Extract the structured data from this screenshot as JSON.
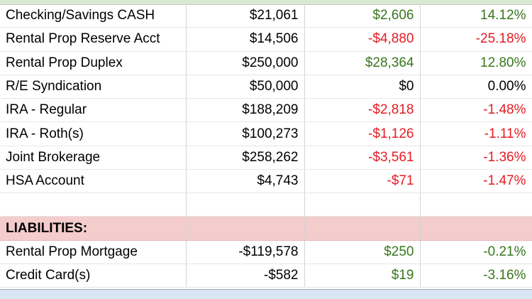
{
  "assets": [
    {
      "name": "Checking/Savings CASH",
      "value": "$21,061",
      "change": "$2,606",
      "change_class": "pos",
      "pct": "14.12%",
      "pct_class": "pos"
    },
    {
      "name": "Rental Prop Reserve Acct",
      "value": "$14,506",
      "change": "-$4,880",
      "change_class": "neg",
      "pct": "-25.18%",
      "pct_class": "neg"
    },
    {
      "name": "Rental Prop Duplex",
      "value": "$250,000",
      "change": "$28,364",
      "change_class": "pos",
      "pct": "12.80%",
      "pct_class": "pos"
    },
    {
      "name": "R/E Syndication",
      "value": "$50,000",
      "change": "$0",
      "change_class": "zero",
      "pct": "0.00%",
      "pct_class": "zero"
    },
    {
      "name": "IRA - Regular",
      "value": "$188,209",
      "change": "-$2,818",
      "change_class": "neg",
      "pct": "-1.48%",
      "pct_class": "neg"
    },
    {
      "name": "IRA - Roth(s)",
      "value": "$100,273",
      "change": "-$1,126",
      "change_class": "neg",
      "pct": "-1.11%",
      "pct_class": "neg"
    },
    {
      "name": "Joint Brokerage",
      "value": "$258,262",
      "change": "-$3,561",
      "change_class": "neg",
      "pct": "-1.36%",
      "pct_class": "neg"
    },
    {
      "name": "HSA Account",
      "value": "$4,743",
      "change": "-$71",
      "change_class": "neg",
      "pct": "-1.47%",
      "pct_class": "neg"
    }
  ],
  "liabilities_header": "LIABILITIES:",
  "liabilities": [
    {
      "name": "Rental Prop Mortgage",
      "value": "-$119,578",
      "change": "$250",
      "change_class": "pos",
      "pct": "-0.21%",
      "pct_class": "pos"
    },
    {
      "name": "Credit Card(s)",
      "value": "-$582",
      "change": "$19",
      "change_class": "pos",
      "pct": "-3.16%",
      "pct_class": "pos"
    }
  ],
  "colors": {
    "positive": "#38761d",
    "negative": "#e51c23",
    "section_bg": "#f4cccc",
    "header_strip": "#d8e9d4",
    "footer_band": "#dbe6f4"
  }
}
